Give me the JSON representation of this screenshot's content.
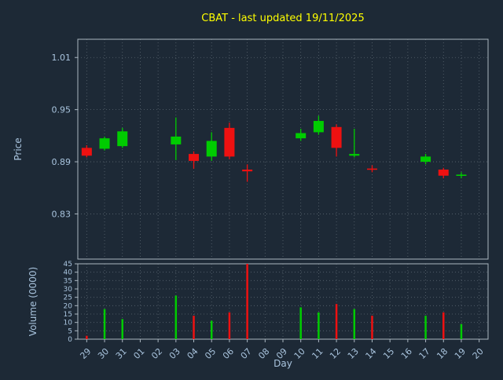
{
  "window": {
    "title": "CBAT - last updated 19/11/2025"
  },
  "colors": {
    "background": "#1d2936",
    "title": "#ffff00",
    "axis_text": "#a9c4de",
    "grid": "#5a6670",
    "border": "#aab6c0",
    "up": "#00cc00",
    "down": "#ee1111"
  },
  "chart_data": {
    "type": "candlestick-with-volume",
    "title": "CBAT - last updated 19/11/2025",
    "xlabel": "Day",
    "ylabel_price": "Price",
    "ylabel_volume": "Volume (0000)",
    "legend": "none",
    "grid": "dotted",
    "x_categories": [
      "29",
      "30",
      "31",
      "01",
      "02",
      "03",
      "04",
      "05",
      "06",
      "07",
      "08",
      "09",
      "10",
      "11",
      "12",
      "13",
      "14",
      "15",
      "16",
      "17",
      "18",
      "19",
      "20"
    ],
    "price_ticks": [
      0.83,
      0.89,
      0.95,
      1.01
    ],
    "price_range": [
      0.778,
      1.031
    ],
    "volume_ticks": [
      0,
      5,
      10,
      15,
      20,
      25,
      30,
      35,
      40,
      45
    ],
    "volume_range": [
      0,
      45
    ],
    "candles": [
      {
        "day": "29",
        "open": 0.906,
        "high": 0.909,
        "low": 0.895,
        "close": 0.897,
        "volume": 2
      },
      {
        "day": "30",
        "open": 0.905,
        "high": 0.919,
        "low": 0.903,
        "close": 0.917,
        "volume": 18
      },
      {
        "day": "31",
        "open": 0.908,
        "high": 0.929,
        "low": 0.906,
        "close": 0.925,
        "volume": 12
      },
      {
        "day": "03",
        "open": 0.91,
        "high": 0.941,
        "low": 0.892,
        "close": 0.919,
        "volume": 26
      },
      {
        "day": "04",
        "open": 0.899,
        "high": 0.902,
        "low": 0.882,
        "close": 0.891,
        "volume": 14
      },
      {
        "day": "05",
        "open": 0.896,
        "high": 0.924,
        "low": 0.891,
        "close": 0.914,
        "volume": 11
      },
      {
        "day": "06",
        "open": 0.929,
        "high": 0.935,
        "low": 0.893,
        "close": 0.896,
        "volume": 16
      },
      {
        "day": "07",
        "open": 0.881,
        "high": 0.887,
        "low": 0.867,
        "close": 0.879,
        "volume": 45
      },
      {
        "day": "10",
        "open": 0.917,
        "high": 0.928,
        "low": 0.914,
        "close": 0.923,
        "volume": 19
      },
      {
        "day": "11",
        "open": 0.924,
        "high": 0.943,
        "low": 0.921,
        "close": 0.937,
        "volume": 16
      },
      {
        "day": "12",
        "open": 0.93,
        "high": 0.933,
        "low": 0.896,
        "close": 0.906,
        "volume": 21
      },
      {
        "day": "13",
        "open": 0.897,
        "high": 0.928,
        "low": 0.895,
        "close": 0.899,
        "volume": 18
      },
      {
        "day": "14",
        "open": 0.882,
        "high": 0.886,
        "low": 0.878,
        "close": 0.881,
        "volume": 14
      },
      {
        "day": "17",
        "open": 0.89,
        "high": 0.899,
        "low": 0.887,
        "close": 0.896,
        "volume": 14
      },
      {
        "day": "18",
        "open": 0.881,
        "high": 0.883,
        "low": 0.871,
        "close": 0.874,
        "volume": 16
      },
      {
        "day": "19",
        "open": 0.874,
        "high": 0.878,
        "low": 0.871,
        "close": 0.875,
        "volume": 9
      }
    ]
  }
}
